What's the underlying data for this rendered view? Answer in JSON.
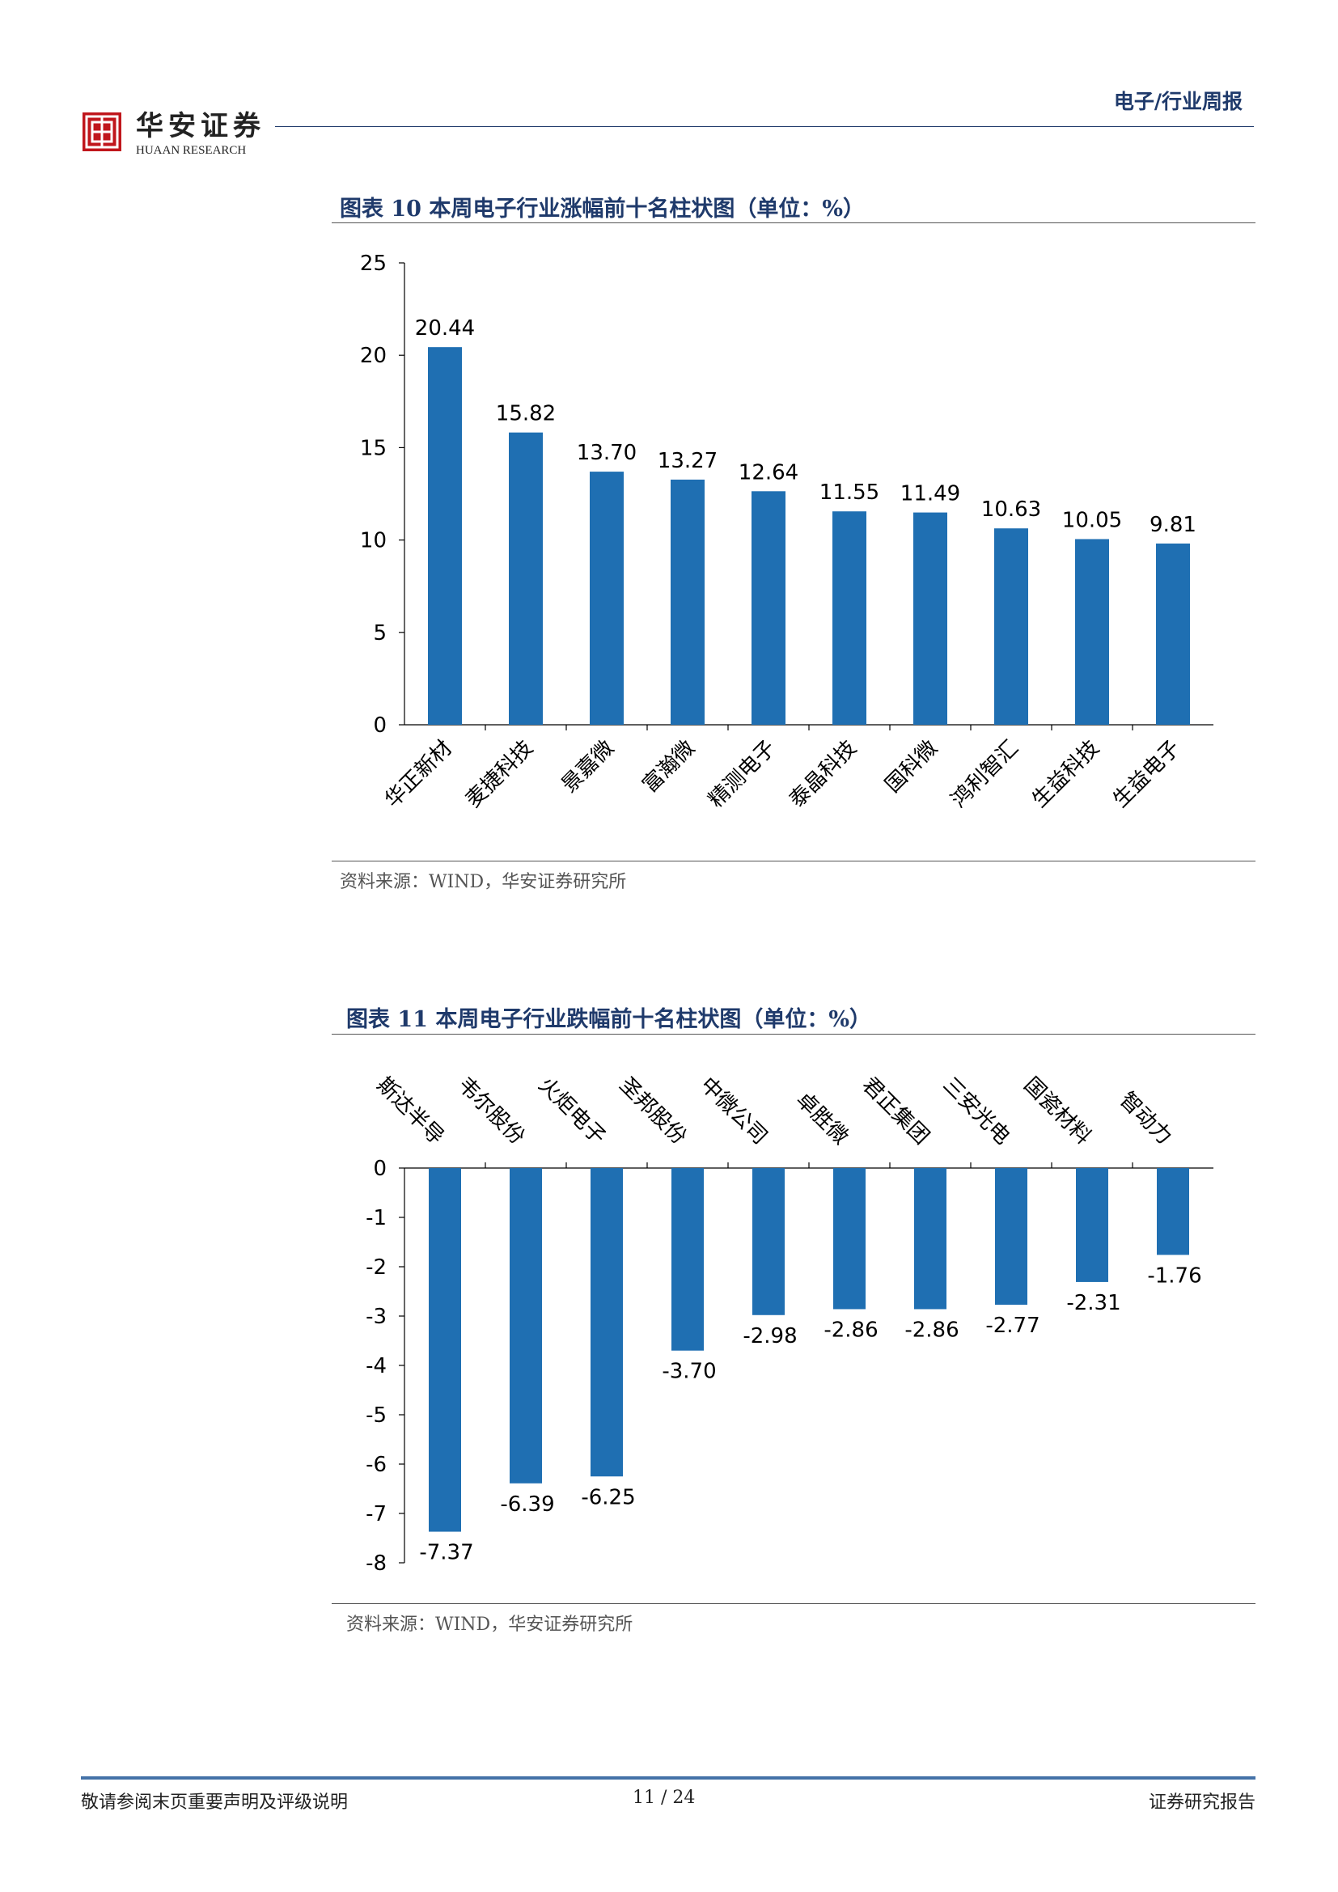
{
  "header": {
    "logo_cn": "华安证券",
    "logo_en": "HUAAN RESEARCH",
    "section_title": "电子/行业周报"
  },
  "figure1": {
    "title": "图表 10 本周电子行业涨幅前十名柱状图（单位：%）",
    "source": "资料来源：WIND，华安证券研究所"
  },
  "figure2": {
    "title": "图表 11 本周电子行业跌幅前十名柱状图（单位：%）",
    "source": "资料来源：WIND，华安证券研究所"
  },
  "chart_data": [
    {
      "type": "bar",
      "categories": [
        "华正新材",
        "麦捷科技",
        "景嘉微",
        "富瀚微",
        "精测电子",
        "泰晶科技",
        "国科微",
        "鸿利智汇",
        "生益科技",
        "生益电子"
      ],
      "values": [
        20.44,
        15.82,
        13.7,
        13.27,
        12.64,
        11.55,
        11.49,
        10.63,
        10.05,
        9.81
      ],
      "value_labels": [
        "20.44",
        "15.82",
        "13.70",
        "13.27",
        "12.64",
        "11.55",
        "11.49",
        "10.63",
        "10.05",
        "9.81"
      ],
      "ylim": [
        0,
        25
      ],
      "yticks": [
        0,
        5,
        10,
        15,
        20,
        25
      ],
      "bar_color": "#1f6fb2",
      "grid": false
    },
    {
      "type": "bar",
      "categories": [
        "斯达半导",
        "韦尔股份",
        "火炬电子",
        "圣邦股份",
        "中微公司",
        "卓胜微",
        "君正集团",
        "三安光电",
        "国瓷材料",
        "智动力"
      ],
      "values": [
        -7.37,
        -6.39,
        -6.25,
        -3.7,
        -2.98,
        -2.86,
        -2.86,
        -2.77,
        -2.31,
        -1.76
      ],
      "value_labels": [
        "-7.37",
        "-6.39",
        "-6.25",
        "-3.70",
        "-2.98",
        "-2.86",
        "-2.86",
        "-2.77",
        "-2.31",
        "-1.76"
      ],
      "ylim": [
        -8,
        0
      ],
      "yticks": [
        0,
        -1,
        -2,
        -3,
        -4,
        -5,
        -6,
        -7,
        -8
      ],
      "bar_color": "#1f6fb2",
      "grid": false
    }
  ],
  "footer": {
    "disclaimer": "敬请参阅末页重要声明及评级说明",
    "page": "11 / 24",
    "report_type": "证券研究报告"
  },
  "colors": {
    "brand_navy": "#1f3a6b",
    "logo_red": "#c0161c",
    "bar_blue": "#1f6fb2",
    "footer_blue": "#4472a8"
  }
}
